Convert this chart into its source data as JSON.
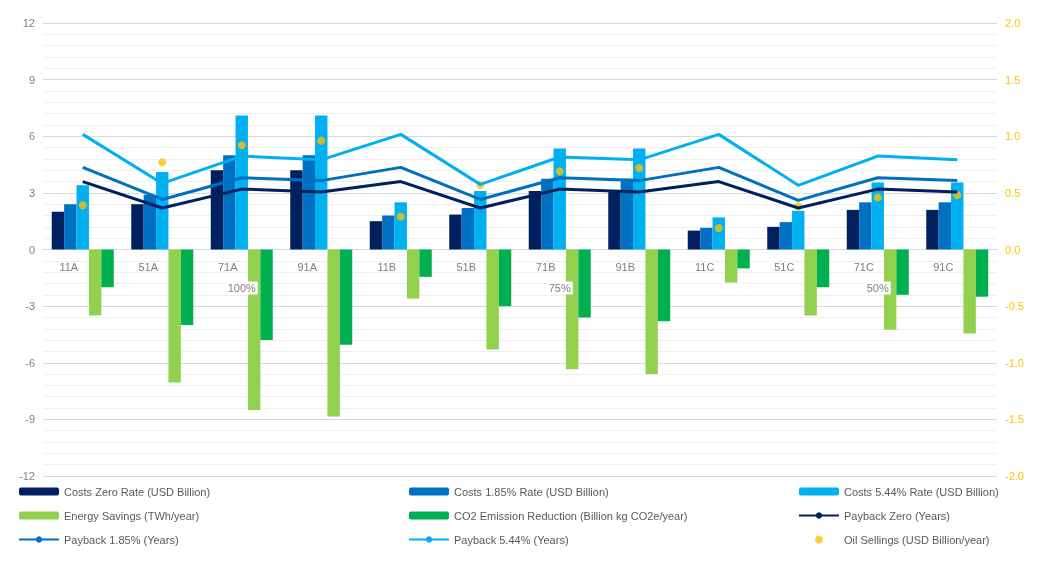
{
  "chart_data": {
    "type": "bar",
    "categories": [
      "11A",
      "51A",
      "71A",
      "91A",
      "11B",
      "51B",
      "71B",
      "91B",
      "11C",
      "51C",
      "71C",
      "91C"
    ],
    "series": [
      {
        "name": "Costs Zero Rate (USD Billion)",
        "color": "#002060",
        "values": [
          2.0,
          2.4,
          4.2,
          4.2,
          1.5,
          1.85,
          3.1,
          3.1,
          1.0,
          1.2,
          2.1,
          2.1
        ]
      },
      {
        "name": "Costs 1.85% Rate (USD Billion)",
        "color": "#0070c0",
        "values": [
          2.4,
          2.9,
          5.0,
          5.0,
          1.8,
          2.2,
          3.75,
          3.75,
          1.15,
          1.45,
          2.5,
          2.5
        ]
      },
      {
        "name": "Costs 5.44% Rate (USD Billion)",
        "color": "#00b0f0",
        "values": [
          3.4,
          4.1,
          7.1,
          7.1,
          2.5,
          3.1,
          5.35,
          5.35,
          1.7,
          2.05,
          3.55,
          3.55
        ]
      },
      {
        "name": "Energy Savings (TWh/year)",
        "color": "#92d050",
        "values": [
          -3.5,
          -7.05,
          -8.5,
          -8.85,
          -2.6,
          -5.3,
          -6.35,
          -6.6,
          -1.75,
          -3.5,
          -4.25,
          -4.45
        ]
      },
      {
        "name": "CO2 Emission Reduction (Billion kg CO2e/year)",
        "color": "#00b050",
        "values": [
          -2.0,
          -4.0,
          -4.8,
          -5.05,
          -1.45,
          -3.0,
          -3.6,
          -3.8,
          -1.0,
          -2.0,
          -2.4,
          -2.5
        ]
      },
      {
        "name": "Payback Zero (Years)",
        "type": "line",
        "color": "#002060",
        "values": [
          3.6,
          2.2,
          3.2,
          3.05,
          3.6,
          2.2,
          3.2,
          3.05,
          3.6,
          2.2,
          3.2,
          3.05
        ]
      },
      {
        "name": "Payback 1.85% (Years)",
        "type": "line",
        "color": "#0070c0",
        "values": [
          4.35,
          2.65,
          3.8,
          3.65,
          4.35,
          2.65,
          3.8,
          3.65,
          4.35,
          2.6,
          3.8,
          3.65
        ]
      },
      {
        "name": "Payback 5.44% (Years)",
        "type": "line",
        "color": "#00b0f0",
        "values": [
          6.1,
          3.5,
          4.95,
          4.75,
          6.1,
          3.45,
          4.9,
          4.75,
          6.1,
          3.4,
          4.95,
          4.75
        ]
      },
      {
        "name": "Oil Sellings (USD Billion/year)",
        "type": "scatter",
        "axis": "y2",
        "color": "#ffc000",
        "values": [
          0.39,
          0.77,
          0.92,
          0.96,
          0.29,
          0.57,
          0.69,
          0.72,
          0.19,
          0.38,
          0.46,
          0.48
        ]
      }
    ],
    "annotations": [
      "100%",
      "75%",
      "50%"
    ],
    "ylim": [
      -12,
      12
    ],
    "yticks": [
      -12,
      -9,
      -6,
      -3,
      0,
      3,
      6,
      9,
      12
    ],
    "y2lim": [
      -2,
      2
    ],
    "y2ticks": [
      {
        "value": -2,
        "label": "-2.0"
      },
      {
        "value": -1.5,
        "label": "-1.5"
      },
      {
        "value": -1,
        "label": "-1.0"
      },
      {
        "value": -0.5,
        "label": "-0.5"
      },
      {
        "value": 0,
        "label": "0.0"
      },
      {
        "value": 0.5,
        "label": "0.5"
      },
      {
        "value": 1,
        "label": "1.0"
      },
      {
        "value": 1.5,
        "label": "1.5"
      },
      {
        "value": 2,
        "label": "2.0"
      }
    ],
    "grid": "y",
    "legend": "bottom"
  }
}
